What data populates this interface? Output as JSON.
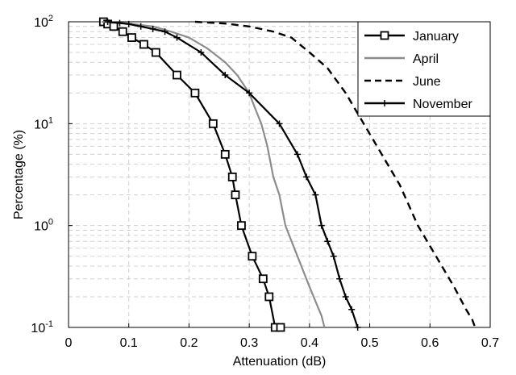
{
  "chart_data": {
    "type": "line",
    "title": "",
    "xlabel": "Attenuation (dB)",
    "ylabel": "Percentage (%)",
    "xlim": [
      0,
      0.7
    ],
    "ylim": [
      0.1,
      100
    ],
    "yscale": "log",
    "grid": true,
    "legend_position": "top-right",
    "x_ticks": [
      "0",
      "0.1",
      "0.2",
      "0.3",
      "0.4",
      "0.5",
      "0.6",
      "0.7"
    ],
    "y_ticks": [
      {
        "base": "10",
        "exp": "2",
        "value": 100
      },
      {
        "base": "10",
        "exp": "1",
        "value": 10
      },
      {
        "base": "10",
        "exp": "0",
        "value": 1
      },
      {
        "base": "10",
        "exp": "-1",
        "value": 0.1
      }
    ],
    "series": [
      {
        "name": "January",
        "color": "#000000",
        "style": "solid",
        "marker": "square",
        "x": [
          0.058,
          0.065,
          0.075,
          0.09,
          0.105,
          0.125,
          0.145,
          0.18,
          0.21,
          0.24,
          0.26,
          0.272,
          0.277,
          0.287,
          0.305,
          0.323,
          0.333,
          0.343,
          0.352
        ],
        "y": [
          100,
          95,
          90,
          80,
          70,
          60,
          50,
          30,
          20,
          10,
          5,
          3,
          2,
          1,
          0.5,
          0.3,
          0.2,
          0.1,
          0.1
        ]
      },
      {
        "name": "April",
        "color": "#8c8c8c",
        "style": "solid",
        "marker": "none",
        "x": [
          0.055,
          0.1,
          0.14,
          0.17,
          0.2,
          0.23,
          0.26,
          0.28,
          0.3,
          0.31,
          0.32,
          0.33,
          0.34,
          0.35,
          0.36,
          0.38,
          0.4,
          0.42,
          0.425
        ],
        "y": [
          100,
          96,
          90,
          80,
          70,
          55,
          40,
          30,
          20,
          14,
          10,
          6,
          3,
          2,
          1,
          0.5,
          0.25,
          0.13,
          0.1
        ]
      },
      {
        "name": "June",
        "color": "#000000",
        "style": "dashed",
        "marker": "none",
        "x": [
          0.21,
          0.26,
          0.3,
          0.34,
          0.37,
          0.4,
          0.43,
          0.46,
          0.49,
          0.52,
          0.55,
          0.58,
          0.61,
          0.64,
          0.66,
          0.67,
          0.675
        ],
        "y": [
          100,
          96,
          90,
          80,
          70,
          50,
          35,
          20,
          10,
          5,
          2.5,
          1,
          0.5,
          0.25,
          0.15,
          0.12,
          0.1
        ]
      },
      {
        "name": "November",
        "color": "#000000",
        "style": "solid",
        "marker": "plus",
        "x": [
          0.065,
          0.085,
          0.1,
          0.12,
          0.14,
          0.16,
          0.18,
          0.22,
          0.26,
          0.3,
          0.35,
          0.38,
          0.395,
          0.41,
          0.42,
          0.43,
          0.44,
          0.45,
          0.46,
          0.47,
          0.48
        ],
        "y": [
          100,
          97,
          95,
          90,
          85,
          80,
          70,
          50,
          30,
          20,
          10,
          5,
          3,
          2,
          1,
          0.7,
          0.5,
          0.3,
          0.2,
          0.15,
          0.1
        ]
      }
    ]
  }
}
